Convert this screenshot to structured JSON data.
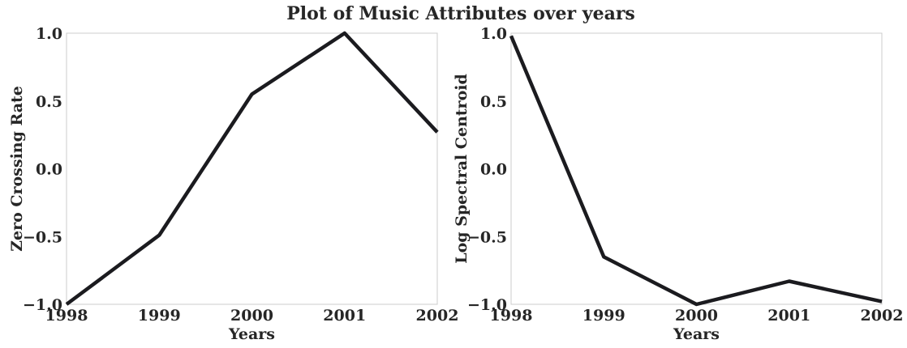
{
  "suptitle": "Plot of Music Attributes over years",
  "colors": {
    "line": "#1b1b1f",
    "frame": "#cccccc",
    "text": "#262626",
    "background": "#ffffff"
  },
  "chart_data": [
    {
      "type": "line",
      "title": "",
      "xlabel": "Years",
      "ylabel": "Zero Crossing Rate",
      "x": [
        1998,
        1999,
        2000,
        2001,
        2002
      ],
      "series": [
        {
          "values": [
            -1.0,
            -0.49,
            0.55,
            1.0,
            0.27
          ]
        }
      ],
      "xlim": [
        1998,
        2002
      ],
      "ylim": [
        -1.0,
        1.0
      ],
      "xticks": [
        1998,
        1999,
        2000,
        2001,
        2002
      ],
      "xtick_labels": [
        "1998",
        "1999",
        "2000",
        "2001",
        "2002"
      ],
      "yticks": [
        -1.0,
        -0.5,
        0.0,
        0.5,
        1.0
      ],
      "ytick_labels": [
        "−1.0",
        "−0.5",
        "0.0",
        "0.5",
        "1.0"
      ],
      "grid": false,
      "legend": "none"
    },
    {
      "type": "line",
      "title": "",
      "xlabel": "Years",
      "ylabel": "Log Spectral Centroid",
      "x": [
        1998,
        1999,
        2000,
        2001,
        2002
      ],
      "series": [
        {
          "values": [
            0.98,
            -0.65,
            -1.0,
            -0.83,
            -0.98
          ]
        }
      ],
      "xlim": [
        1998,
        2002
      ],
      "ylim": [
        -1.0,
        1.0
      ],
      "xticks": [
        1998,
        1999,
        2000,
        2001,
        2002
      ],
      "xtick_labels": [
        "1998",
        "1999",
        "2000",
        "2001",
        "2002"
      ],
      "yticks": [
        -1.0,
        -0.5,
        0.0,
        0.5,
        1.0
      ],
      "ytick_labels": [
        "−1.0",
        "−0.5",
        "0.0",
        "0.5",
        "1.0"
      ],
      "grid": false,
      "legend": "none"
    }
  ]
}
